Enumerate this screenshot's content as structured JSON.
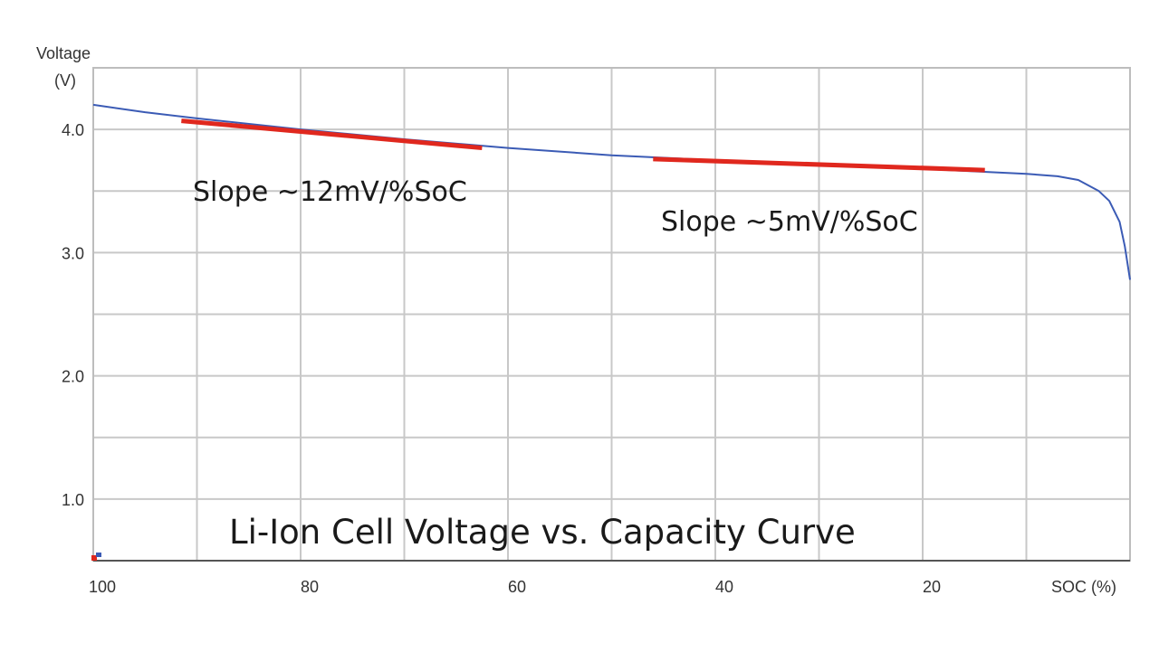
{
  "chart_data": {
    "type": "line",
    "title": "Li-Ion Cell Voltage vs. Capacity Curve",
    "xlabel": "SOC (%)",
    "ylabel": "Voltage",
    "ylabel_unit": "(V)",
    "xlim": [
      100,
      0
    ],
    "ylim": [
      0.5,
      4.5
    ],
    "grid": true,
    "x_grid_step": 10,
    "y_grid_step": 0.5,
    "x_ticks": [
      {
        "value": 100,
        "label": "100"
      },
      {
        "value": 80,
        "label": "80"
      },
      {
        "value": 60,
        "label": "60"
      },
      {
        "value": 40,
        "label": "40"
      },
      {
        "value": 20,
        "label": "20"
      },
      {
        "value": 0,
        "label": "SOC (%)"
      }
    ],
    "y_ticks": [
      {
        "value": 4.0,
        "label": "4.0"
      },
      {
        "value": 3.0,
        "label": "3.0"
      },
      {
        "value": 2.0,
        "label": "2.0"
      },
      {
        "value": 1.0,
        "label": "1.0"
      }
    ],
    "series": [
      {
        "name": "Cell voltage",
        "color": "#3b5bb5",
        "x": [
          100,
          95,
          90,
          80,
          70,
          60,
          50,
          40,
          30,
          20,
          10,
          7,
          5,
          3,
          2,
          1,
          0.5,
          0
        ],
        "y": [
          4.2,
          4.14,
          4.09,
          4.0,
          3.92,
          3.85,
          3.79,
          3.75,
          3.71,
          3.68,
          3.64,
          3.62,
          3.59,
          3.5,
          3.42,
          3.25,
          3.05,
          2.78
        ]
      }
    ],
    "fit_lines": [
      {
        "name": "slope-12",
        "color": "#e0281e",
        "x": [
          91.5,
          62.5
        ],
        "y": [
          4.07,
          3.85
        ]
      },
      {
        "name": "slope-5",
        "color": "#e0281e",
        "x": [
          46,
          14
        ],
        "y": [
          3.76,
          3.67
        ]
      }
    ],
    "annotations": [
      {
        "text": "Slope ~12mV/%SoC",
        "x": 92,
        "y": 3.45
      },
      {
        "text": "Slope ~5mV/%SoC",
        "x": 47,
        "y": 3.2
      }
    ]
  }
}
